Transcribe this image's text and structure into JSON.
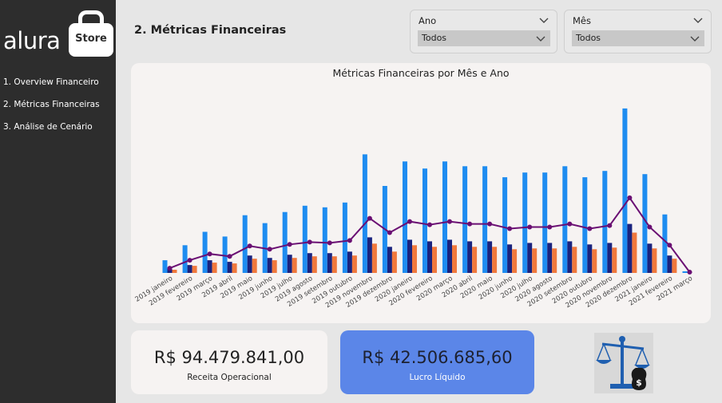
{
  "sidebar": {
    "logo_text": "alura",
    "logo_badge": "Store",
    "items": [
      {
        "label": "1. Overview Financeiro"
      },
      {
        "label": "2. Métricas Financeiras"
      },
      {
        "label": "3. Análise de Cenário"
      }
    ]
  },
  "page": {
    "title": "2. Métricas Financeiras"
  },
  "filters": {
    "ano": {
      "label": "Ano",
      "value": "Todos"
    },
    "mes": {
      "label": "Mês",
      "value": "Todos"
    }
  },
  "kpis": {
    "receita": {
      "value": "R$ 94.479.841,00",
      "label": "Receita Operacional"
    },
    "lucro": {
      "value": "R$ 42.506.685,60",
      "label": "Lucro Líquido"
    }
  },
  "colors": {
    "bar_light_blue": "#1e8cf0",
    "bar_dark_blue": "#1a237e",
    "bar_orange": "#f0783c",
    "line_purple": "#6a0f73",
    "kpi_highlight": "#5b86e8"
  },
  "icons": {
    "scale": "balance-scale-money-icon",
    "chevron": "chevron-down-icon"
  },
  "chart_data": {
    "type": "bar",
    "title": "Métricas Financeiras por Mês e Ano",
    "categories": [
      "2019 janeiro",
      "2019 fevereiro",
      "2019 março",
      "2019 abril",
      "2019 maio",
      "2019 junho",
      "2019 julho",
      "2019 agosto",
      "2019 setembro",
      "2019 outubro",
      "2019 novembro",
      "2019 dezembro",
      "2020 janeiro",
      "2020 fevereiro",
      "2020 março",
      "2020 abril",
      "2020 maio",
      "2020 junho",
      "2020 julho",
      "2020 agosto",
      "2020 setembro",
      "2020 outubro",
      "2020 novembro",
      "2020 dezembro",
      "2021 janeiro",
      "2021 fevereiro",
      "2021 março"
    ],
    "series": [
      {
        "kind": "bar",
        "color": "#1e8cf0",
        "values": [
          16,
          35,
          52,
          46,
          73,
          63,
          77,
          85,
          83,
          89,
          150,
          110,
          141,
          132,
          141,
          135,
          135,
          121,
          127,
          127,
          135,
          121,
          129,
          208,
          125,
          74,
          2
        ]
      },
      {
        "kind": "bar",
        "color": "#1a237e",
        "values": [
          5,
          10,
          16,
          14,
          22,
          19,
          23,
          25,
          25,
          27,
          45,
          33,
          42,
          40,
          42,
          40,
          40,
          36,
          38,
          38,
          40,
          36,
          38,
          62,
          37,
          22,
          1
        ]
      },
      {
        "kind": "bar",
        "color": "#f0783c",
        "values": [
          4,
          9,
          13,
          12,
          18,
          16,
          19,
          21,
          21,
          22,
          37,
          27,
          35,
          33,
          35,
          33,
          33,
          30,
          31,
          31,
          33,
          30,
          32,
          51,
          31,
          18,
          0
        ]
      },
      {
        "kind": "line",
        "color": "#6a0f73",
        "values": [
          6,
          16,
          24,
          21,
          34,
          30,
          36,
          39,
          38,
          41,
          69,
          51,
          65,
          61,
          65,
          62,
          62,
          56,
          58,
          58,
          62,
          56,
          60,
          95,
          58,
          35,
          1
        ]
      }
    ],
    "ylim": [
      0,
      215
    ],
    "grid": false,
    "legend": "none"
  }
}
